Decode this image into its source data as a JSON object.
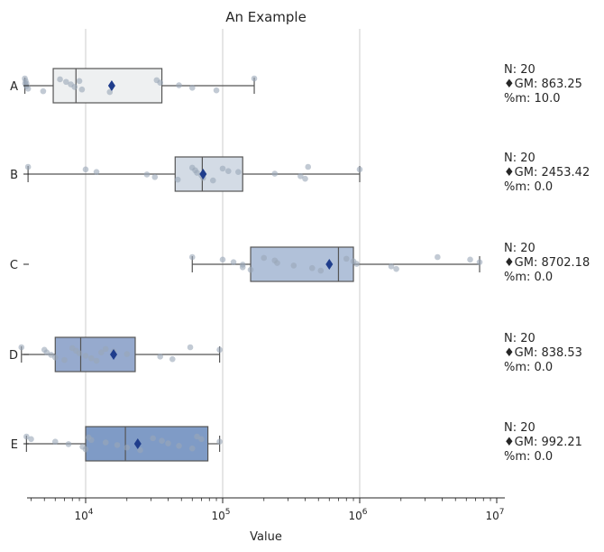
{
  "chart_data": {
    "type": "box",
    "title": "An Example",
    "xlabel": "Value",
    "ylabel": "",
    "x_scale": "log",
    "xlim": [
      3000,
      10000000
    ],
    "x_ticks": [
      {
        "value": 10000,
        "base": "10",
        "exp": "4"
      },
      {
        "value": 100000,
        "base": "10",
        "exp": "5"
      },
      {
        "value": 1000000,
        "base": "10",
        "exp": "6"
      },
      {
        "value": 10000000,
        "base": "10",
        "exp": "7"
      }
    ],
    "grid": "vertical",
    "colors": {
      "A": "#eef0f1",
      "B": "#d3dbe5",
      "C": "#b1c1d9",
      "D": "#96aace",
      "E": "#7f9bc6",
      "mean_marker": "#1f3d8c",
      "points": "#9aa6b8"
    },
    "categories": [
      "A",
      "B",
      "C",
      "D",
      "E"
    ],
    "boxes": [
      {
        "name": "A",
        "whislo": 3600,
        "q1": 5800,
        "median": 8500,
        "q3": 36000,
        "whishi": 170000,
        "mean": 15500,
        "points": [
          3600,
          3650,
          3700,
          3700,
          3800,
          4900,
          6500,
          7200,
          7800,
          8300,
          9400,
          15000,
          33000,
          35000,
          48000,
          60000,
          90000,
          170000,
          9000,
          3620
        ]
      },
      {
        "name": "B",
        "whislo": 3800,
        "q1": 45000,
        "median": 71000,
        "q3": 140000,
        "whishi": 1000000,
        "mean": 72000,
        "points": [
          3800,
          10000,
          12000,
          28000,
          32000,
          47000,
          60000,
          63000,
          65000,
          70000,
          72000,
          85000,
          100000,
          110000,
          240000,
          370000,
          400000,
          420000,
          1000000,
          130000
        ]
      },
      {
        "name": "C",
        "whislo": 60000,
        "q1": 160000,
        "median": 700000,
        "q3": 900000,
        "whishi": 7500000,
        "mean": 600000,
        "points": [
          60000,
          100000,
          120000,
          140000,
          140000,
          160000,
          200000,
          240000,
          250000,
          330000,
          450000,
          520000,
          800000,
          900000,
          950000,
          1700000,
          1850000,
          3700000,
          6400000,
          7500000
        ]
      },
      {
        "name": "D",
        "whislo": 3400,
        "q1": 6000,
        "median": 9200,
        "q3": 23000,
        "whishi": 95000,
        "mean": 16000,
        "points": [
          3400,
          5000,
          5200,
          5600,
          6000,
          7000,
          8000,
          8500,
          9000,
          10000,
          11000,
          12000,
          14000,
          16000,
          20000,
          35000,
          43000,
          58000,
          95000,
          13000
        ]
      },
      {
        "name": "E",
        "whislo": 3700,
        "q1": 10000,
        "median": 19500,
        "q3": 78000,
        "whishi": 95000,
        "mean": 24000,
        "points": [
          3700,
          4000,
          6000,
          7500,
          9500,
          10000,
          10500,
          11000,
          14000,
          17000,
          20000,
          25000,
          31000,
          36000,
          40000,
          48000,
          60000,
          65000,
          70000,
          95000
        ]
      }
    ],
    "annotations": [
      {
        "n": "N: 20",
        "gm": "♦GM: 863.25",
        "pm": "%m: 10.0"
      },
      {
        "n": "N: 20",
        "gm": "♦GM: 2453.42",
        "pm": "%m: 0.0"
      },
      {
        "n": "N: 20",
        "gm": "♦GM: 8702.18",
        "pm": "%m: 0.0"
      },
      {
        "n": "N: 20",
        "gm": "♦GM: 838.53",
        "pm": "%m: 0.0"
      },
      {
        "n": "N: 20",
        "gm": "♦GM: 992.21",
        "pm": "%m: 0.0"
      }
    ]
  }
}
